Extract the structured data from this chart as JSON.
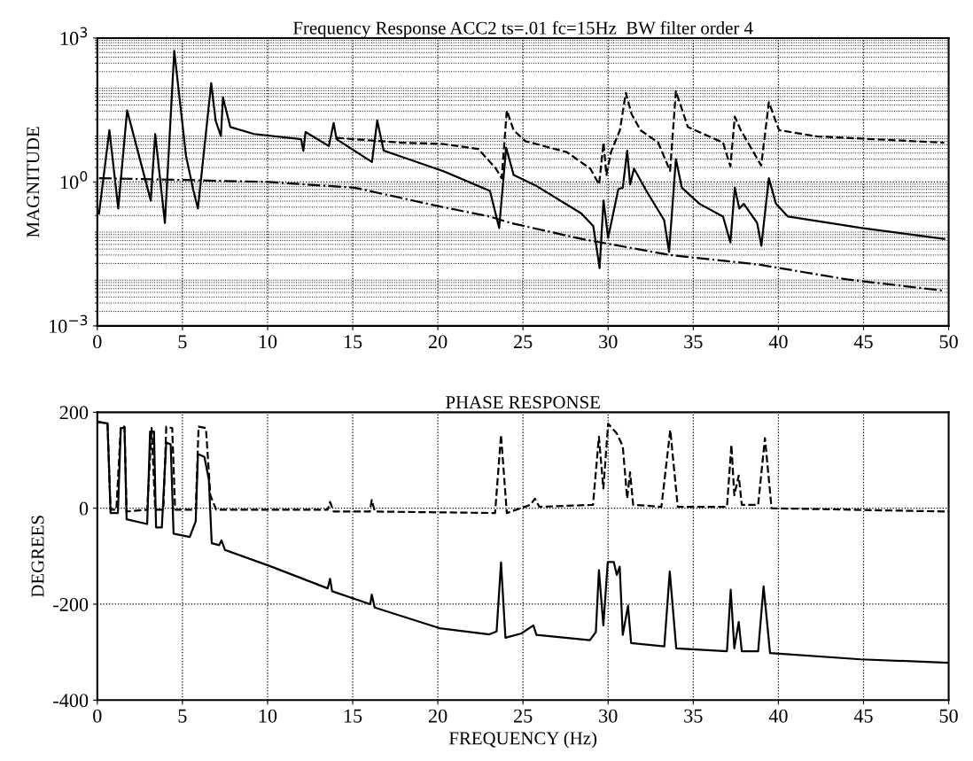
{
  "chart_data": [
    {
      "type": "line",
      "title": "Frequency Response ACC2 ts=.01 fc=15Hz  BW filter order 4",
      "ylabel": "MAGNITUDE",
      "log": "y",
      "grid": true,
      "legend": false,
      "marker": "none",
      "xlim": [
        0,
        50
      ],
      "xticks": [
        0,
        5,
        10,
        15,
        20,
        25,
        30,
        35,
        40,
        45,
        50
      ],
      "ylim": [
        0.001,
        1000
      ],
      "yticks": [
        {
          "value": 0.001,
          "label": "10$^{−3}$"
        },
        {
          "value": 1,
          "label": "10$^{0}$"
        },
        {
          "value": 1000,
          "label": "10$^{3}$"
        }
      ],
      "series": [
        {
          "color": "#000000",
          "line_style": "solid",
          "x": [
            0.1,
            0.71,
            1.23,
            1.75,
            3.14,
            3.4,
            3.97,
            4.52,
            5.21,
            5.65,
            5.91,
            6.69,
            6.95,
            7.26,
            7.38,
            7.81,
            9.2,
            11.97,
            12.1,
            12.23,
            13.6,
            13.88,
            14.05,
            16.13,
            16.44,
            16.82,
            20.29,
            23.06,
            23.6,
            24.01,
            24.45,
            25.83,
            28.43,
            29.13,
            29.5,
            29.73,
            30.0,
            30.6,
            30.86,
            31.12,
            31.29,
            31.52,
            32.25,
            33.29,
            33.58,
            33.98,
            34.33,
            35.37,
            36.75,
            37.18,
            37.44,
            37.7,
            37.97,
            38.75,
            39.0,
            39.44,
            39.86,
            40.56,
            44.89,
            49.74
          ],
          "values": [
            0.22,
            12,
            0.28,
            31,
            0.41,
            10,
            0.14,
            540,
            3.5,
            0.65,
            0.28,
            115,
            19,
            9,
            58,
            14,
            10,
            7.8,
            4.5,
            11,
            5.6,
            17,
            7.8,
            2.6,
            19,
            4.5,
            1.7,
            0.65,
            0.11,
            5.2,
            1.4,
            0.81,
            0.22,
            0.12,
            0.016,
            0.41,
            0.069,
            0.71,
            0.76,
            4.5,
            0.89,
            1.9,
            0.65,
            0.16,
            0.035,
            3.0,
            0.76,
            0.35,
            0.19,
            0.055,
            0.76,
            0.28,
            0.35,
            0.14,
            0.047,
            1.2,
            0.35,
            0.19,
            0.11,
            0.065
          ]
        },
        {
          "color": "#000000",
          "line_style": "dashed",
          "x": [
            14.05,
            17.86,
            20.29,
            22.37,
            23.41,
            23.75,
            24.05,
            24.45,
            25.14,
            27.57,
            28.95,
            29.47,
            29.73,
            29.9,
            30.17,
            30.69,
            31.04,
            31.38,
            31.9,
            32.94,
            33.64,
            33.98,
            34.68,
            36.75,
            37.18,
            37.44,
            37.79,
            38.99,
            39.44,
            40.04,
            42.29,
            49.74
          ],
          "values": [
            8.3,
            6.6,
            6.2,
            4.9,
            1.9,
            1.2,
            31,
            12,
            7.1,
            4.2,
            1.9,
            0.89,
            6.6,
            1.4,
            4.2,
            12,
            72,
            26,
            12,
            6.6,
            1.7,
            78,
            14,
            6.6,
            2.1,
            23,
            12,
            2.2,
            46,
            12,
            8.9,
            6.6
          ]
        },
        {
          "color": "#000000",
          "line_style": "dashdot",
          "x": [
            0.1,
            5.04,
            10.07,
            15.1,
            20.29,
            23.06,
            24.27,
            28.43,
            33.64,
            38.84,
            44.04,
            49.74
          ],
          "values": [
            1.2,
            1.1,
            1.0,
            0.76,
            0.3,
            0.19,
            0.14,
            0.065,
            0.03,
            0.019,
            0.0093,
            0.0054
          ]
        }
      ]
    },
    {
      "type": "line",
      "title": "PHASE RESPONSE",
      "xlabel": "FREQUENCY (Hz)",
      "ylabel": "DEGREES",
      "grid": true,
      "legend": false,
      "marker": "none",
      "xlim": [
        0,
        50
      ],
      "xticks": [
        0,
        5,
        10,
        15,
        20,
        25,
        30,
        35,
        40,
        45,
        50
      ],
      "ylim": [
        -400,
        200
      ],
      "yticks": [
        -400,
        -200,
        0,
        200
      ],
      "series": [
        {
          "color": "#000000",
          "line_style": "solid",
          "x": [
            0,
            0.6,
            0.78,
            1.21,
            1.38,
            1.6,
            1.72,
            2.93,
            3.1,
            3.33,
            3.45,
            3.79,
            4.05,
            4.31,
            4.48,
            5.43,
            5.78,
            5.91,
            6.29,
            6.55,
            6.72,
            7.16,
            7.29,
            7.5,
            10.09,
            13.53,
            13.67,
            13.79,
            16.03,
            16.12,
            16.29,
            20.09,
            23.02,
            23.45,
            23.71,
            23.97,
            24.91,
            25.61,
            25.79,
            28.93,
            29.28,
            29.46,
            29.72,
            29.98,
            30.33,
            30.51,
            30.68,
            30.86,
            31.17,
            31.35,
            33.3,
            33.62,
            34.0,
            36.98,
            37.2,
            37.41,
            37.67,
            37.85,
            38.81,
            39.13,
            39.51,
            44.84,
            49.91
          ],
          "values": [
            180,
            177,
            -10,
            -10,
            167,
            167,
            -23,
            -33,
            160,
            160,
            -40,
            -40,
            137,
            133,
            -53,
            -60,
            -27,
            113,
            107,
            60,
            -73,
            -77,
            -67,
            -87,
            -120,
            -167,
            -147,
            -173,
            -200,
            -180,
            -207,
            -250,
            -263,
            -257,
            -113,
            -270,
            -261,
            -244,
            -264,
            -275,
            -258,
            -129,
            -244,
            -112,
            -112,
            -139,
            -122,
            -264,
            -203,
            -281,
            -288,
            -132,
            -292,
            -298,
            -170,
            -292,
            -237,
            -298,
            -298,
            -163,
            -302,
            -315,
            -322
          ]
        },
        {
          "color": "#000000",
          "line_style": "dashed",
          "x": [
            0,
            0.6,
            0.78,
            1.12,
            1.38,
            1.6,
            1.72,
            2.93,
            3.19,
            3.4,
            3.88,
            4.05,
            4.4,
            4.57,
            5.78,
            5.95,
            6.38,
            6.64,
            6.98,
            13.53,
            13.67,
            13.88,
            16.0,
            16.12,
            16.3,
            23.36,
            23.71,
            24.05,
            25.44,
            25.7,
            25.96,
            29.11,
            29.46,
            29.72,
            30.0,
            30.51,
            30.86,
            31.12,
            31.29,
            31.47,
            33.13,
            33.65,
            34.09,
            36.98,
            37.24,
            37.41,
            37.67,
            37.85,
            38.81,
            39.21,
            39.6,
            50
          ],
          "values": [
            180,
            177,
            -3,
            -3,
            170,
            170,
            -7,
            -3,
            167,
            -3,
            -3,
            170,
            167,
            -3,
            -3,
            170,
            167,
            27,
            -3,
            -3,
            13,
            -7,
            -7,
            17,
            -7,
            -10,
            153,
            -10,
            7,
            20,
            3,
            7,
            149,
            41,
            176,
            156,
            129,
            20,
            75,
            7,
            3,
            163,
            3,
            3,
            132,
            27,
            68,
            7,
            7,
            146,
            0,
            -7
          ]
        }
      ]
    }
  ]
}
